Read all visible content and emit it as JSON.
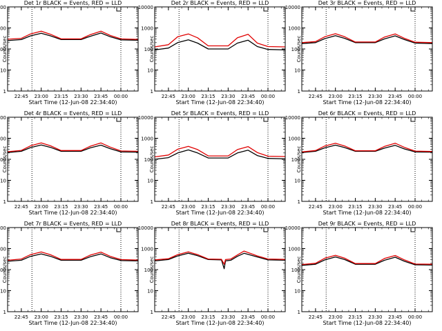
{
  "chart_data": [
    {
      "type": "line",
      "title": "Det 1r BLACK = Events, RED = LLD",
      "xlabel": "Start Time (12-Jun-08 22:34:40)",
      "ylabel": "Counts/sec",
      "ylim": [
        1,
        10000
      ],
      "yscale": "log",
      "xlim": [
        "22:34:40",
        "00:13:00"
      ],
      "xticks": [
        "22:45",
        "23:00",
        "23:15",
        "23:30",
        "23:45",
        "00:00"
      ],
      "yticks": [
        "1",
        "10",
        "100",
        "1000",
        "10000"
      ],
      "vlines": [
        "22:53",
        "00:00"
      ],
      "grid": false,
      "series": [
        {
          "color": "#000000",
          "x": [
            "22:34:40",
            "22:45",
            "22:52",
            "23:00",
            "23:07",
            "23:15",
            "23:30",
            "23:37",
            "23:45",
            "23:52",
            "00:00",
            "00:13"
          ],
          "values": [
            250,
            280,
            420,
            560,
            420,
            280,
            280,
            400,
            570,
            380,
            270,
            260
          ]
        },
        {
          "color": "#e00000",
          "x": [
            "22:34:40",
            "22:45",
            "22:52",
            "23:00",
            "23:07",
            "23:15",
            "23:30",
            "23:37",
            "23:45",
            "23:52",
            "00:00",
            "00:13"
          ],
          "values": [
            290,
            320,
            520,
            700,
            500,
            300,
            300,
            480,
            700,
            440,
            300,
            285
          ]
        }
      ]
    },
    {
      "type": "line",
      "title": "Det 2r BLACK = Events, RED = LLD",
      "xlabel": "Start Time (12-Jun-08 22:34:40)",
      "ylabel": "Counts/sec",
      "ylim": [
        1,
        10000
      ],
      "yscale": "log",
      "xlim": [
        "22:34:40",
        "00:13:00"
      ],
      "xticks": [
        "22:45",
        "23:00",
        "23:15",
        "23:30",
        "23:45",
        "00:00"
      ],
      "yticks": [
        "1",
        "10",
        "100",
        "1000",
        "10000"
      ],
      "vlines": [
        "22:53",
        "00:00"
      ],
      "grid": false,
      "series": [
        {
          "color": "#000000",
          "x": [
            "22:34:40",
            "22:45",
            "22:52",
            "23:00",
            "23:07",
            "23:15",
            "23:30",
            "23:37",
            "23:45",
            "23:52",
            "00:00",
            "00:13"
          ],
          "values": [
            90,
            110,
            200,
            270,
            190,
            100,
            100,
            190,
            260,
            130,
            95,
            90
          ]
        },
        {
          "color": "#e00000",
          "x": [
            "22:34:40",
            "22:45",
            "22:52",
            "23:00",
            "23:07",
            "23:15",
            "23:30",
            "23:37",
            "23:45",
            "23:52",
            "00:00",
            "00:13"
          ],
          "values": [
            125,
            160,
            380,
            520,
            340,
            140,
            140,
            340,
            500,
            190,
            130,
            125
          ]
        }
      ]
    },
    {
      "type": "line",
      "title": "Det 3r BLACK = Events, RED = LLD",
      "xlabel": "Start Time (12-Jun-08 22:34:40)",
      "ylabel": "Counts/sec",
      "ylim": [
        1,
        10000
      ],
      "yscale": "log",
      "xlim": [
        "22:34:40",
        "00:13:00"
      ],
      "xticks": [
        "22:45",
        "23:00",
        "23:15",
        "23:30",
        "23:45",
        "00:00"
      ],
      "yticks": [
        "1",
        "10",
        "100",
        "1000",
        "10000"
      ],
      "vlines": [
        "22:53",
        "00:00"
      ],
      "grid": false,
      "series": [
        {
          "color": "#000000",
          "x": [
            "22:34:40",
            "22:45",
            "22:52",
            "23:00",
            "23:07",
            "23:15",
            "23:30",
            "23:37",
            "23:45",
            "23:52",
            "00:00",
            "00:13"
          ],
          "values": [
            180,
            200,
            310,
            430,
            320,
            200,
            200,
            300,
            420,
            280,
            190,
            180
          ]
        },
        {
          "color": "#e00000",
          "x": [
            "22:34:40",
            "22:45",
            "22:52",
            "23:00",
            "23:07",
            "23:15",
            "23:30",
            "23:37",
            "23:45",
            "23:52",
            "00:00",
            "00:13"
          ],
          "values": [
            200,
            225,
            380,
            530,
            380,
            215,
            215,
            370,
            520,
            320,
            210,
            200
          ]
        }
      ]
    },
    {
      "type": "line",
      "title": "Det 4r BLACK = Events, RED = LLD",
      "xlabel": "Start Time (12-Jun-08 22:34:40)",
      "ylabel": "Counts/sec",
      "ylim": [
        1,
        10000
      ],
      "yscale": "log",
      "xlim": [
        "22:34:40",
        "00:13:00"
      ],
      "xticks": [
        "22:45",
        "23:00",
        "23:15",
        "23:30",
        "23:45",
        "00:00"
      ],
      "yticks": [
        "1",
        "10",
        "100",
        "1000",
        "10000"
      ],
      "vlines": [
        "22:53",
        "00:00"
      ],
      "grid": false,
      "series": [
        {
          "color": "#000000",
          "x": [
            "22:34:40",
            "22:45",
            "22:52",
            "23:00",
            "23:07",
            "23:15",
            "23:30",
            "23:37",
            "23:45",
            "23:52",
            "00:00",
            "00:13"
          ],
          "values": [
            210,
            240,
            360,
            480,
            370,
            240,
            240,
            350,
            470,
            320,
            225,
            220
          ]
        },
        {
          "color": "#e00000",
          "x": [
            "22:34:40",
            "22:45",
            "22:52",
            "23:00",
            "23:07",
            "23:15",
            "23:30",
            "23:37",
            "23:45",
            "23:52",
            "00:00",
            "00:13"
          ],
          "values": [
            230,
            265,
            440,
            600,
            440,
            260,
            260,
            420,
            600,
            380,
            250,
            240
          ]
        }
      ]
    },
    {
      "type": "line",
      "title": "Det 5r BLACK = Events, RED = LLD",
      "xlabel": "Start Time (12-Jun-08 22:34:40)",
      "ylabel": "Counts/sec",
      "ylim": [
        1,
        10000
      ],
      "yscale": "log",
      "xlim": [
        "22:34:40",
        "00:13:00"
      ],
      "xticks": [
        "22:45",
        "23:00",
        "23:15",
        "23:30",
        "23:45",
        "00:00"
      ],
      "yticks": [
        "1",
        "10",
        "100",
        "1000",
        "10000"
      ],
      "vlines": [
        "22:53",
        "00:00"
      ],
      "grid": false,
      "series": [
        {
          "color": "#000000",
          "x": [
            "22:34:40",
            "22:45",
            "22:52",
            "23:00",
            "23:07",
            "23:15",
            "23:30",
            "23:37",
            "23:45",
            "23:52",
            "00:00",
            "00:13"
          ],
          "values": [
            100,
            120,
            200,
            280,
            200,
            115,
            115,
            200,
            270,
            150,
            110,
            105
          ]
        },
        {
          "color": "#e00000",
          "x": [
            "22:34:40",
            "22:45",
            "22:52",
            "23:00",
            "23:07",
            "23:15",
            "23:30",
            "23:37",
            "23:45",
            "23:52",
            "00:00",
            "00:13"
          ],
          "values": [
            130,
            160,
            300,
            410,
            290,
            145,
            145,
            290,
            400,
            210,
            140,
            135
          ]
        }
      ]
    },
    {
      "type": "line",
      "title": "Det 6r BLACK = Events, RED = LLD",
      "xlabel": "Start Time (12-Jun-08 22:34:40)",
      "ylabel": "Counts/sec",
      "ylim": [
        1,
        10000
      ],
      "yscale": "log",
      "xlim": [
        "22:34:40",
        "00:13:00"
      ],
      "xticks": [
        "22:45",
        "23:00",
        "23:15",
        "23:30",
        "23:45",
        "00:00"
      ],
      "yticks": [
        "1",
        "10",
        "100",
        "1000",
        "10000"
      ],
      "vlines": [
        "22:53",
        "00:00"
      ],
      "grid": false,
      "series": [
        {
          "color": "#000000",
          "x": [
            "22:34:40",
            "22:45",
            "22:52",
            "23:00",
            "23:07",
            "23:15",
            "23:30",
            "23:37",
            "23:45",
            "23:52",
            "00:00",
            "00:13"
          ],
          "values": [
            210,
            240,
            350,
            470,
            360,
            240,
            240,
            340,
            460,
            310,
            225,
            220
          ]
        },
        {
          "color": "#e00000",
          "x": [
            "22:34:40",
            "22:45",
            "22:52",
            "23:00",
            "23:07",
            "23:15",
            "23:30",
            "23:37",
            "23:45",
            "23:52",
            "00:00",
            "00:13"
          ],
          "values": [
            225,
            260,
            430,
            580,
            430,
            255,
            255,
            410,
            580,
            370,
            245,
            235
          ]
        }
      ]
    },
    {
      "type": "line",
      "title": "Det 7r BLACK = Events, RED = LLD",
      "xlabel": "Start Time (12-Jun-08 22:34:40)",
      "ylabel": "Counts/sec",
      "ylim": [
        1,
        10000
      ],
      "yscale": "log",
      "xlim": [
        "22:34:40",
        "00:13:00"
      ],
      "xticks": [
        "22:45",
        "23:00",
        "23:15",
        "23:30",
        "23:45",
        "00:00"
      ],
      "yticks": [
        "1",
        "10",
        "100",
        "1000",
        "10000"
      ],
      "vlines": [
        "22:53",
        "00:00"
      ],
      "grid": false,
      "series": [
        {
          "color": "#000000",
          "x": [
            "22:34:40",
            "22:45",
            "22:52",
            "23:00",
            "23:07",
            "23:15",
            "23:30",
            "23:37",
            "23:45",
            "23:52",
            "00:00",
            "00:13"
          ],
          "values": [
            250,
            280,
            430,
            560,
            430,
            280,
            280,
            410,
            560,
            370,
            270,
            260
          ]
        },
        {
          "color": "#e00000",
          "x": [
            "22:34:40",
            "22:45",
            "22:52",
            "23:00",
            "23:07",
            "23:15",
            "23:30",
            "23:37",
            "23:45",
            "23:52",
            "00:00",
            "00:13"
          ],
          "values": [
            280,
            320,
            520,
            690,
            510,
            305,
            305,
            490,
            680,
            430,
            300,
            285
          ]
        }
      ]
    },
    {
      "type": "line",
      "title": "Det 8r BLACK = Events, RED = LLD",
      "xlabel": "Start Time (12-Jun-08 22:34:40)",
      "ylabel": "Counts/sec",
      "ylim": [
        1,
        10000
      ],
      "yscale": "log",
      "xlim": [
        "22:34:40",
        "00:13:00"
      ],
      "xticks": [
        "22:45",
        "23:00",
        "23:15",
        "23:30",
        "23:45",
        "00:00"
      ],
      "yticks": [
        "1",
        "10",
        "100",
        "1000",
        "10000"
      ],
      "vlines": [
        "22:53",
        "00:00"
      ],
      "grid": false,
      "series": [
        {
          "color": "#000000",
          "x": [
            "22:34:40",
            "22:45",
            "22:52",
            "23:00",
            "23:07",
            "23:15",
            "23:25",
            "23:27",
            "23:28",
            "23:32",
            "23:37",
            "23:42",
            "23:52",
            "00:00",
            "00:13"
          ],
          "values": [
            260,
            300,
            450,
            600,
            460,
            300,
            290,
            110,
            260,
            280,
            430,
            600,
            400,
            290,
            280
          ]
        },
        {
          "color": "#e00000",
          "x": [
            "22:34:40",
            "22:45",
            "22:52",
            "23:00",
            "23:07",
            "23:15",
            "23:25",
            "23:27",
            "23:28",
            "23:32",
            "23:37",
            "23:42",
            "23:52",
            "00:00",
            "00:13"
          ],
          "values": [
            290,
            330,
            520,
            700,
            520,
            320,
            310,
            180,
            300,
            320,
            500,
            760,
            450,
            320,
            305
          ]
        }
      ]
    },
    {
      "type": "line",
      "title": "Det 9r BLACK = Events, RED = LLD",
      "xlabel": "Start Time (12-Jun-08 22:34:40)",
      "ylabel": "Counts/sec",
      "ylim": [
        1,
        10000
      ],
      "yscale": "log",
      "xlim": [
        "22:34:40",
        "00:13:00"
      ],
      "xticks": [
        "22:45",
        "23:00",
        "23:15",
        "23:30",
        "23:45",
        "00:00"
      ],
      "yticks": [
        "1",
        "10",
        "100",
        "1000",
        "10000"
      ],
      "vlines": [
        "22:53",
        "00:00"
      ],
      "grid": false,
      "series": [
        {
          "color": "#000000",
          "x": [
            "22:34:40",
            "22:45",
            "22:52",
            "23:00",
            "23:07",
            "23:15",
            "23:30",
            "23:37",
            "23:45",
            "23:52",
            "00:00",
            "00:13"
          ],
          "values": [
            160,
            180,
            290,
            400,
            300,
            180,
            180,
            280,
            390,
            250,
            170,
            165
          ]
        },
        {
          "color": "#e00000",
          "x": [
            "22:34:40",
            "22:45",
            "22:52",
            "23:00",
            "23:07",
            "23:15",
            "23:30",
            "23:37",
            "23:45",
            "23:52",
            "00:00",
            "00:13"
          ],
          "values": [
            175,
            200,
            350,
            480,
            350,
            195,
            195,
            340,
            470,
            290,
            185,
            180
          ]
        }
      ]
    }
  ]
}
